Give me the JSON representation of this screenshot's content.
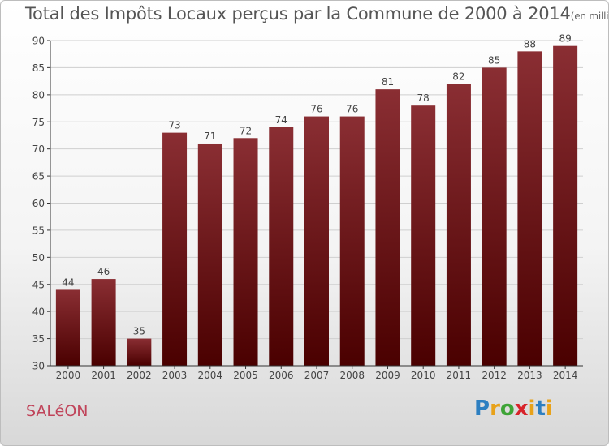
{
  "header": {
    "title": "Total des Impôts Locaux perçus par la Commune de 2000 à 2014",
    "unit": "(en milliers d'€)"
  },
  "footer": {
    "commune": "SALéON",
    "brand_letters": [
      "P",
      "r",
      "o",
      "x",
      "i",
      "t",
      "i"
    ],
    "brand_colors": [
      "#2d7fc1",
      "#e8a21a",
      "#3ea437",
      "#d8232a",
      "#e8a21a",
      "#2d7fc1",
      "#e8a21a"
    ]
  },
  "colors": {
    "bar_top": "#8a2e33",
    "bar_bottom": "#4a0000",
    "grid": "#cfcfcf",
    "axis": "#333333"
  },
  "chart_data": {
    "type": "bar",
    "title": "Total des Impôts Locaux perçus par la Commune de 2000 à 2014",
    "ylabel": "",
    "xlabel": "",
    "ylim": [
      30,
      90
    ],
    "yticks": [
      30,
      35,
      40,
      45,
      50,
      55,
      60,
      65,
      70,
      75,
      80,
      85,
      90
    ],
    "categories": [
      "2000",
      "2001",
      "2002",
      "2003",
      "2004",
      "2005",
      "2006",
      "2007",
      "2008",
      "2009",
      "2010",
      "2011",
      "2012",
      "2013",
      "2014"
    ],
    "values": [
      44,
      46,
      35,
      73,
      71,
      72,
      74,
      76,
      76,
      81,
      78,
      82,
      85,
      88,
      89
    ]
  }
}
